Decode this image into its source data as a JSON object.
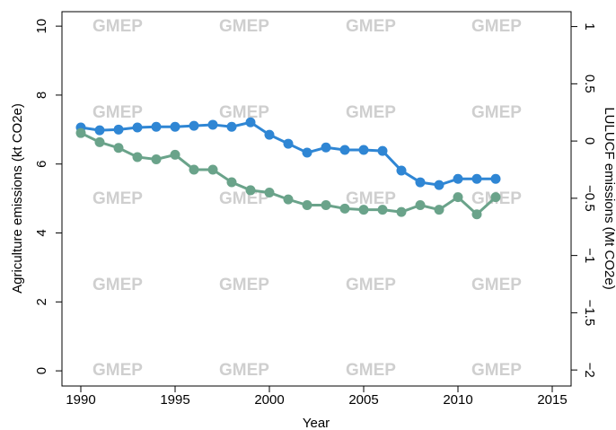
{
  "chart_data": {
    "type": "line",
    "watermark": "GMEP",
    "xlabel": "Year",
    "ylabel": "Agriculture emissions (kt CO2e)",
    "y2label": "LULUCF emissions (Mt CO2e)",
    "x": [
      1990,
      1991,
      1992,
      1993,
      1994,
      1995,
      1996,
      1997,
      1998,
      1999,
      2000,
      2001,
      2002,
      2003,
      2004,
      2005,
      2006,
      2007,
      2008,
      2009,
      2010,
      2011,
      2012
    ],
    "series": [
      {
        "color": "#2f86d4",
        "axis": "y",
        "values": [
          7.06,
          6.98,
          7.0,
          7.06,
          7.08,
          7.08,
          7.11,
          7.14,
          7.08,
          7.21,
          6.85,
          6.59,
          6.33,
          6.48,
          6.41,
          6.41,
          6.38,
          5.81,
          5.47,
          5.39,
          5.57,
          5.57,
          5.57
        ]
      },
      {
        "color": "#6aa38a",
        "axis": "y2",
        "values": [
          0.07,
          -0.01,
          -0.06,
          -0.14,
          -0.16,
          -0.12,
          -0.25,
          -0.25,
          -0.36,
          -0.43,
          -0.45,
          -0.51,
          -0.56,
          -0.56,
          -0.59,
          -0.6,
          -0.6,
          -0.62,
          -0.56,
          -0.6,
          -0.49,
          -0.64,
          -0.49
        ]
      }
    ],
    "xlim": [
      1989,
      2016
    ],
    "xticks": [
      1990,
      1995,
      2000,
      2005,
      2010,
      2015
    ],
    "ylim": [
      -0.44,
      10.42
    ],
    "yticks": [
      0,
      2,
      4,
      6,
      8,
      10
    ],
    "y2lim": [
      -2.14,
      1.13
    ],
    "y2ticks": [
      {
        "value": -2,
        "label": "−2"
      },
      {
        "value": -1.5,
        "label": "−1.5"
      },
      {
        "value": -1,
        "label": "−1"
      },
      {
        "value": -0.5,
        "label": "−0.5"
      },
      0,
      0.5,
      1
    ],
    "grid": false
  }
}
